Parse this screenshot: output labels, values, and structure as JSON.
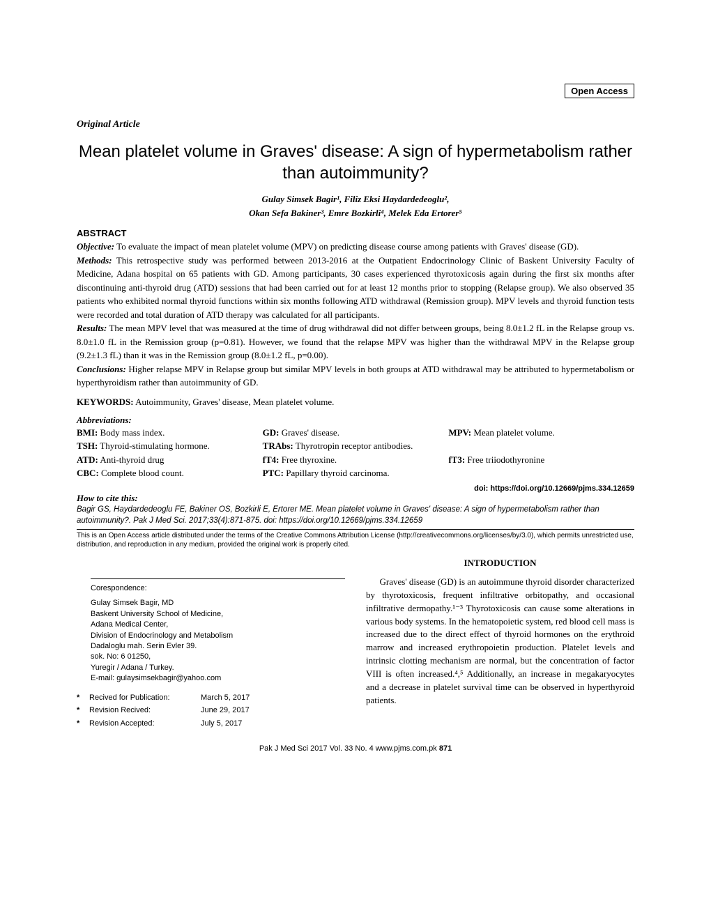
{
  "header": {
    "open_access": "Open Access",
    "article_type": "Original Article"
  },
  "title": "Mean platelet volume in Graves' disease: A sign of hypermetabolism rather than autoimmunity?",
  "authors_line1": "Gulay Simsek Bagir¹, Filiz Eksi Haydardedeoglu²,",
  "authors_line2": "Okan Sefa Bakiner³, Emre Bozkirli⁴, Melek Eda Ertorer⁵",
  "abstract": {
    "heading": "ABSTRACT",
    "objective_label": "Objective:",
    "objective": " To evaluate the impact of mean platelet volume (MPV) on predicting disease course among patients with Graves' disease (GD).",
    "methods_label": "Methods:",
    "methods": " This retrospective study was performed between 2013-2016 at the Outpatient Endocrinology Clinic of Baskent University Faculty of Medicine, Adana hospital on 65 patients with GD. Among participants, 30 cases experienced thyrotoxicosis again during the first six months after discontinuing anti-thyroid drug (ATD) sessions that had been carried out for at least 12 months prior to stopping (Relapse group). We also observed 35 patients who exhibited normal thyroid functions within six months following ATD withdrawal (Remission group). MPV levels and thyroid function tests were recorded and total duration of ATD therapy was calculated for all participants.",
    "results_label": "Results:",
    "results": " The mean MPV level that was measured at the time of drug withdrawal did not differ between groups, being 8.0±1.2 fL in the Relapse group vs. 8.0±1.0 fL in the Remission group (p=0.81). However, we found that the relapse MPV was higher than the withdrawal MPV in the Relapse group (9.2±1.3 fL) than it was in the Remission group (8.0±1.2 fL, p=0.00).",
    "conclusions_label": "Conclusions:",
    "conclusions": " Higher relapse MPV in Relapse group but similar MPV levels in both groups at ATD withdrawal may be attributed to hypermetabolism or hyperthyroidism rather than autoimmunity of GD."
  },
  "keywords": {
    "label": "KEYWORDS:",
    "text": " Autoimmunity, Graves' disease, Mean platelet volume."
  },
  "abbreviations": {
    "heading": "Abbreviations:",
    "items": [
      {
        "abbr": "BMI:",
        "exp": " Body mass index.",
        "span": 1
      },
      {
        "abbr": "GD:",
        "exp": " Graves' disease.",
        "span": 1
      },
      {
        "abbr": "MPV:",
        "exp": " Mean platelet volume.",
        "span": 1
      },
      {
        "abbr": "TSH:",
        "exp": " Thyroid-stimulating hormone.",
        "span": 1
      },
      {
        "abbr": "TRAbs:",
        "exp": " Thyrotropin receptor antibodies.",
        "span": 2
      },
      {
        "abbr": "ATD:",
        "exp": " Anti-thyroid drug",
        "span": 1
      },
      {
        "abbr": "fT4:",
        "exp": " Free thyroxine.",
        "span": 1
      },
      {
        "abbr": "fT3:",
        "exp": " Free triiodothyronine",
        "span": 1
      },
      {
        "abbr": "CBC:",
        "exp": " Complete blood count.",
        "span": 1
      },
      {
        "abbr": "PTC:",
        "exp": " Papillary thyroid carcinoma.",
        "span": 2
      }
    ]
  },
  "doi": "doi: https://doi.org/10.12669/pjms.334.12659",
  "cite": {
    "heading": "How to cite this:",
    "body": "Bagir GS, Haydardedeoglu FE, Bakiner OS, Bozkirli E, Ertorer ME. Mean platelet volume in Graves' disease: A sign of hypermetabolism rather than autoimmunity?. Pak J Med Sci. 2017;33(4):871-875.   doi: https://doi.org/10.12669/pjms.334.12659"
  },
  "license": "This is an Open Access article distributed under the terms of the Creative Commons Attribution License (http://creativecommons.org/licenses/by/3.0), which permits unrestricted use, distribution, and reproduction in any medium, provided the original work is properly cited.",
  "introduction": {
    "heading": "INTRODUCTION",
    "body": "Graves' disease (GD) is an autoimmune thyroid disorder characterized by thyrotoxicosis, frequent infiltrative orbitopathy, and occasional infiltrative dermopathy.¹⁻³ Thyrotoxicosis can cause some alterations in various body systems. In the hematopoietic system, red blood cell mass is increased due to the direct effect of thyroid hormones on the erythroid marrow and increased erythropoietin production. Platelet levels and intrinsic clotting mechanism are normal, but the concentration of factor VIII is often increased.⁴,⁵ Additionally, an increase in megakaryocytes and a decrease in platelet survival time can be observed in hyperthyroid patients."
  },
  "correspondence": {
    "heading": "Corespondence:",
    "lines": [
      "Gulay Simsek Bagir, MD",
      "Baskent University School of Medicine,",
      "Adana Medical Center,",
      "Division of Endocrinology and Metabolism",
      "Dadaloglu mah. Serin Evler 39.",
      "sok. No: 6   01250,",
      "Yuregir / Adana / Turkey.",
      "E-mail: gulaysimsekbagir@yahoo.com"
    ]
  },
  "dates": [
    {
      "label": "Recived for Publication:",
      "value": "March 5, 2017"
    },
    {
      "label": "Revision Recived:",
      "value": "June 29, 2017"
    },
    {
      "label": "Revision Accepted:",
      "value": "July 5, 2017"
    }
  ],
  "footer": {
    "text": "Pak J Med Sci   2017   Vol. 33   No. 4    www.pjms.com.pk   ",
    "page": "871"
  },
  "colors": {
    "text": "#000000",
    "background": "#ffffff",
    "border": "#000000"
  },
  "typography": {
    "title_fontsize": 24,
    "body_fontsize": 13,
    "small_fontsize": 11,
    "tiny_fontsize": 10,
    "serif": "Georgia, Times New Roman, serif",
    "sans": "Arial, Helvetica, sans-serif"
  }
}
